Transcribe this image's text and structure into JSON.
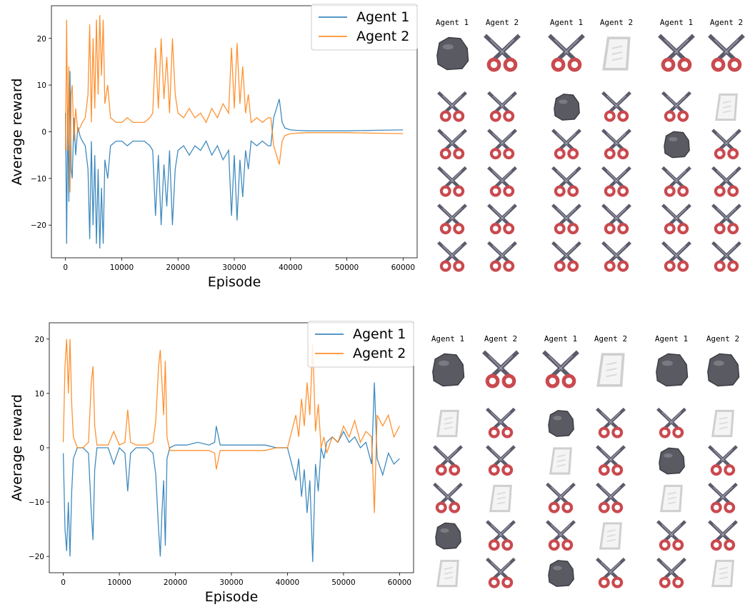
{
  "colors": {
    "agent1": "#1f77b4",
    "agent2": "#ff7f0e"
  },
  "chart_data": [
    {
      "type": "line",
      "xlabel": "Episode",
      "ylabel": "Average reward",
      "xlim": [
        -2500,
        62500
      ],
      "ylim": [
        -27,
        27
      ],
      "xticks": [
        0,
        10000,
        20000,
        30000,
        40000,
        50000,
        60000
      ],
      "yticks": [
        -20,
        -10,
        0,
        10,
        20
      ],
      "legend": "top-right",
      "series": [
        {
          "name": "Agent 1",
          "color": "#1f77b4",
          "x": [
            0,
            200,
            400,
            600,
            800,
            1000,
            1200,
            1500,
            1800,
            2200,
            2600,
            3000,
            3500,
            4000,
            4300,
            4600,
            4900,
            5200,
            5500,
            5800,
            6100,
            6400,
            6700,
            7000,
            7500,
            8000,
            9000,
            10000,
            11000,
            12000,
            13000,
            14000,
            15000,
            15500,
            16000,
            16500,
            17000,
            17500,
            18000,
            18500,
            19000,
            19500,
            20000,
            21000,
            22000,
            23000,
            24000,
            25000,
            26000,
            27000,
            28000,
            29000,
            29500,
            30000,
            30500,
            31000,
            31500,
            32000,
            32500,
            33000,
            34000,
            35000,
            36000,
            36500,
            37000,
            37500,
            38000,
            38500,
            39000,
            40000,
            41000,
            43000,
            46000,
            50000,
            55000,
            60000
          ],
          "y": [
            4,
            -24,
            5,
            -15,
            13,
            -8,
            -10,
            3,
            -5,
            1,
            -1,
            -2,
            -3,
            -8,
            -23,
            -2,
            -20,
            -5,
            -24,
            -8,
            -25,
            -12,
            -24,
            -6,
            -10,
            -3,
            -2,
            -2,
            -3,
            -2,
            -2,
            -2,
            -3,
            -4,
            -18,
            -5,
            -20,
            -7,
            -16,
            -4,
            -20,
            -8,
            -4,
            -3,
            -5,
            -3,
            -4,
            -2,
            -5,
            -3,
            -6,
            -4,
            -18,
            -5,
            -19,
            -6,
            -14,
            -4,
            -8,
            -2,
            -3,
            -2,
            -3,
            -3,
            3,
            5,
            7,
            2,
            0.8,
            0.4,
            0.3,
            0.2,
            0.2,
            0.2,
            0.3,
            0.4
          ]
        },
        {
          "name": "Agent 2",
          "color": "#ff7f0e",
          "x": [
            0,
            200,
            400,
            600,
            800,
            1000,
            1200,
            1500,
            1800,
            2200,
            2600,
            3000,
            3500,
            4000,
            4300,
            4600,
            4900,
            5200,
            5500,
            5800,
            6100,
            6400,
            6700,
            7000,
            7500,
            8000,
            9000,
            10000,
            11000,
            12000,
            13000,
            14000,
            15000,
            15500,
            16000,
            16500,
            17000,
            17500,
            18000,
            18500,
            19000,
            19500,
            20000,
            21000,
            22000,
            23000,
            24000,
            25000,
            26000,
            27000,
            28000,
            29000,
            29500,
            30000,
            30500,
            31000,
            31500,
            32000,
            32500,
            33000,
            34000,
            35000,
            36000,
            36500,
            37000,
            37500,
            38000,
            38500,
            39000,
            40000,
            41000,
            43000,
            46000,
            50000,
            55000,
            60000
          ],
          "y": [
            -4,
            24,
            -4,
            14,
            -13,
            8,
            10,
            -2,
            5,
            0,
            1,
            2,
            3,
            8,
            23,
            2,
            20,
            5,
            24,
            8,
            25,
            12,
            24,
            6,
            10,
            3,
            2,
            2,
            3,
            2,
            2,
            2,
            3,
            4,
            18,
            5,
            20,
            7,
            16,
            4,
            20,
            8,
            4,
            3,
            5,
            3,
            4,
            2,
            5,
            3,
            6,
            4,
            18,
            5,
            19,
            6,
            14,
            4,
            8,
            2,
            3,
            2,
            3,
            3,
            -3,
            -5,
            -7,
            -2,
            -0.8,
            -0.4,
            -0.3,
            -0.2,
            -0.2,
            -0.2,
            -0.3,
            -0.4
          ]
        }
      ]
    },
    {
      "type": "line",
      "xlabel": "Episode",
      "ylabel": "Average reward",
      "xlim": [
        -2500,
        62500
      ],
      "ylim": [
        -23,
        23
      ],
      "xticks": [
        0,
        10000,
        20000,
        30000,
        40000,
        50000,
        60000
      ],
      "yticks": [
        -20,
        -10,
        0,
        10,
        20
      ],
      "legend": "top-right",
      "series": [
        {
          "name": "Agent 1",
          "color": "#1f77b4",
          "x": [
            0,
            300,
            600,
            900,
            1200,
            1500,
            1800,
            2500,
            3500,
            4500,
            5000,
            5300,
            5600,
            6000,
            7000,
            8000,
            9000,
            10000,
            11000,
            11500,
            12000,
            13000,
            14000,
            15000,
            16000,
            16500,
            17000,
            17300,
            17600,
            17900,
            18200,
            18500,
            19000,
            20000,
            22000,
            24000,
            26000,
            27000,
            27300,
            28000,
            30000,
            32000,
            34000,
            36000,
            38000,
            40000,
            41000,
            41500,
            42000,
            42500,
            43000,
            43500,
            44000,
            44500,
            45000,
            45500,
            46000,
            46500,
            47000,
            48000,
            49000,
            50000,
            51000,
            52000,
            53000,
            54000,
            55000,
            55500,
            56000,
            57000,
            58000,
            59000,
            60000
          ],
          "y": [
            -1,
            -15,
            -19,
            -10,
            -20,
            -8,
            -2,
            0,
            0,
            -1,
            -12,
            -17,
            -4,
            0,
            0,
            0,
            -3,
            0,
            -1,
            -8,
            -1,
            0,
            0,
            0,
            -1,
            -5,
            -15,
            -20,
            -12,
            -6,
            -18,
            -2,
            0,
            0.5,
            0.5,
            1,
            0.5,
            1,
            4,
            0.5,
            0.5,
            0.5,
            0.5,
            0.5,
            0,
            0,
            -4,
            -6,
            -2,
            -9,
            -4,
            -12,
            -6,
            -21,
            -3,
            -8,
            0,
            -2,
            1,
            2,
            1,
            3,
            1,
            2,
            0,
            1,
            -3,
            12,
            -2,
            -5,
            -1,
            -3,
            -2
          ]
        },
        {
          "name": "Agent 2",
          "color": "#ff7f0e",
          "x": [
            0,
            300,
            600,
            900,
            1200,
            1500,
            1800,
            2500,
            3500,
            4500,
            5000,
            5300,
            5600,
            6000,
            7000,
            8000,
            9000,
            10000,
            11000,
            11500,
            12000,
            13000,
            14000,
            15000,
            16000,
            16500,
            17000,
            17300,
            17600,
            17900,
            18200,
            18500,
            19000,
            20000,
            22000,
            24000,
            26000,
            27000,
            27300,
            28000,
            30000,
            32000,
            34000,
            36000,
            38000,
            40000,
            41000,
            41500,
            42000,
            42500,
            43000,
            43500,
            44000,
            44500,
            45000,
            45500,
            46000,
            46500,
            47000,
            48000,
            49000,
            50000,
            51000,
            52000,
            53000,
            54000,
            55000,
            55500,
            56000,
            57000,
            58000,
            59000,
            60000
          ],
          "y": [
            1,
            15,
            20,
            10,
            20,
            8,
            2,
            0,
            0,
            1,
            12,
            15,
            4,
            0.5,
            0.5,
            0.5,
            3,
            0.5,
            1,
            7,
            1,
            0.5,
            0.5,
            0.5,
            1,
            5,
            15,
            18,
            12,
            6,
            16,
            2,
            -0.5,
            -0.5,
            -0.5,
            -0.5,
            -0.5,
            -1,
            -4,
            -0.5,
            -0.5,
            -0.5,
            -0.5,
            -0.5,
            0,
            0,
            4,
            6,
            2,
            9,
            4,
            12,
            6,
            19,
            3,
            8,
            0,
            2,
            -1,
            2,
            1,
            4,
            2,
            5,
            1,
            3,
            2,
            -12,
            6,
            4,
            6,
            2,
            4
          ]
        }
      ]
    }
  ],
  "grids": [
    {
      "headers": [
        "Agent 1",
        "Agent 2",
        "Agent 1",
        "Agent 2",
        "Agent 1",
        "Agent 2"
      ],
      "first_row": [
        "rock",
        "scissors",
        "scissors",
        "paper",
        "scissors",
        "scissors"
      ],
      "rows": [
        [
          "scissors",
          "scissors",
          "rock",
          "scissors",
          "scissors",
          "paper"
        ],
        [
          "scissors",
          "scissors",
          "scissors",
          "scissors",
          "rock",
          "scissors"
        ],
        [
          "scissors",
          "scissors",
          "scissors",
          "scissors",
          "scissors",
          "scissors"
        ],
        [
          "scissors",
          "scissors",
          "scissors",
          "scissors",
          "scissors",
          "scissors"
        ],
        [
          "scissors",
          "scissors",
          "scissors",
          "scissors",
          "scissors",
          "scissors"
        ]
      ]
    },
    {
      "headers": [
        "Agent 1",
        "Agent 2",
        "Agent 1",
        "Agent 2",
        "Agent 1",
        "Agent 2"
      ],
      "first_row": [
        "rock",
        "scissors",
        "scissors",
        "paper",
        "rock",
        "rock"
      ],
      "rows": [
        [
          "paper",
          "scissors",
          "rock",
          "scissors",
          "scissors",
          "paper"
        ],
        [
          "scissors",
          "scissors",
          "paper",
          "scissors",
          "rock",
          "scissors"
        ],
        [
          "scissors",
          "paper",
          "scissors",
          "scissors",
          "paper",
          "scissors"
        ],
        [
          "rock",
          "scissors",
          "scissors",
          "paper",
          "scissors",
          "scissors"
        ],
        [
          "paper",
          "scissors",
          "rock",
          "scissors",
          "scissors",
          "paper"
        ]
      ]
    }
  ]
}
